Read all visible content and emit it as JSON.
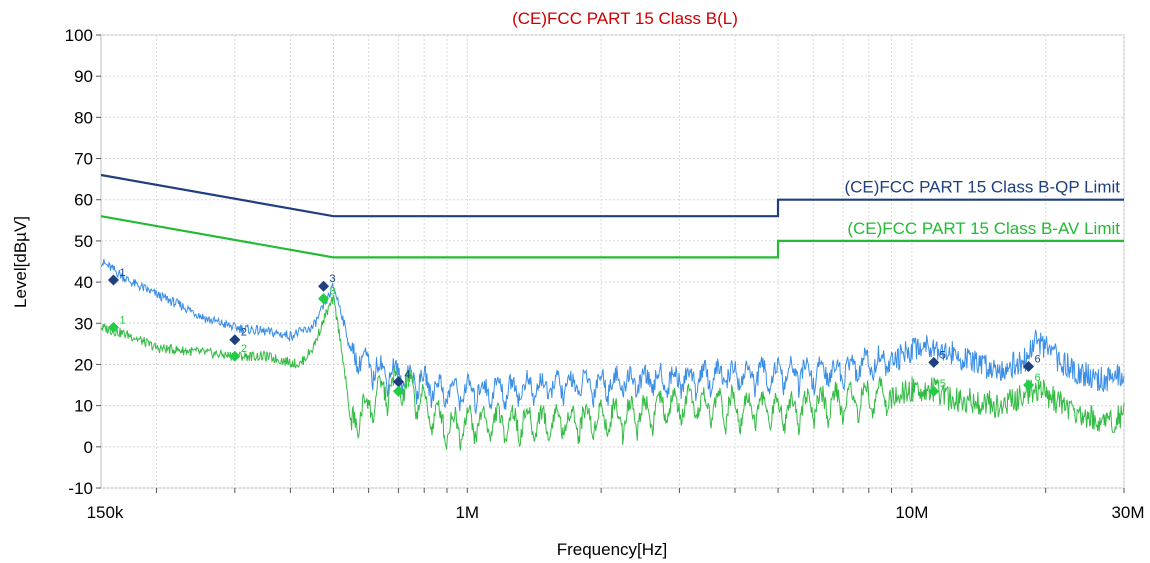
{
  "chart_data": {
    "type": "line",
    "title": "(CE)FCC PART 15 Class B(L)",
    "xlabel": "Frequency[Hz]",
    "ylabel": "Level[dBµV]",
    "x_scale": "log",
    "xlim": [
      150000,
      30000000
    ],
    "ylim": [
      -10,
      100
    ],
    "grid": true,
    "x_tick_labels": [
      {
        "value": 150000,
        "label": "150k"
      },
      {
        "value": 1000000,
        "label": "1M"
      },
      {
        "value": 10000000,
        "label": "10M"
      },
      {
        "value": 30000000,
        "label": "30M"
      }
    ],
    "y_ticks": [
      -10,
      0,
      10,
      20,
      30,
      40,
      50,
      60,
      70,
      80,
      90,
      100
    ],
    "series": [
      {
        "name": "(CE)FCC PART 15 Class B-QP Limit",
        "color": "#1f3f7f",
        "style": "limit",
        "points": [
          [
            150000,
            66
          ],
          [
            500000,
            56
          ],
          [
            5000000,
            56
          ],
          [
            5000000,
            60
          ],
          [
            30000000,
            60
          ]
        ]
      },
      {
        "name": "(CE)FCC PART 15 Class B-AV Limit",
        "color": "#22bb33",
        "style": "limit",
        "points": [
          [
            150000,
            56
          ],
          [
            500000,
            46
          ],
          [
            5000000,
            46
          ],
          [
            5000000,
            50
          ],
          [
            30000000,
            50
          ]
        ]
      },
      {
        "color": "#3a8ee6",
        "style": "trace",
        "points": [
          [
            150000,
            45
          ],
          [
            160000,
            43
          ],
          [
            175000,
            40
          ],
          [
            200000,
            37
          ],
          [
            230000,
            34
          ],
          [
            260000,
            31
          ],
          [
            300000,
            29
          ],
          [
            350000,
            28
          ],
          [
            400000,
            27
          ],
          [
            450000,
            29
          ],
          [
            480000,
            35
          ],
          [
            500000,
            39
          ],
          [
            520000,
            33
          ],
          [
            550000,
            22
          ],
          [
            600000,
            18
          ],
          [
            650000,
            17
          ],
          [
            700000,
            16
          ],
          [
            750000,
            15
          ],
          [
            800000,
            14
          ],
          [
            900000,
            12
          ],
          [
            1000000,
            12
          ],
          [
            1500000,
            13
          ],
          [
            2000000,
            14
          ],
          [
            3000000,
            15
          ],
          [
            4000000,
            16
          ],
          [
            5000000,
            16
          ],
          [
            7000000,
            17
          ],
          [
            9000000,
            20
          ],
          [
            10000000,
            24
          ],
          [
            11000000,
            25
          ],
          [
            12000000,
            23
          ],
          [
            14000000,
            20
          ],
          [
            16000000,
            19
          ],
          [
            18000000,
            21
          ],
          [
            19000000,
            26
          ],
          [
            20000000,
            24
          ],
          [
            22000000,
            20
          ],
          [
            25000000,
            17
          ],
          [
            28000000,
            16
          ],
          [
            30000000,
            18
          ]
        ]
      },
      {
        "color": "#33bb44",
        "style": "trace",
        "points": [
          [
            150000,
            29
          ],
          [
            175000,
            27
          ],
          [
            200000,
            24
          ],
          [
            250000,
            23
          ],
          [
            300000,
            22
          ],
          [
            350000,
            22
          ],
          [
            420000,
            20
          ],
          [
            450000,
            24
          ],
          [
            480000,
            32
          ],
          [
            500000,
            36
          ],
          [
            520000,
            25
          ],
          [
            550000,
            4
          ],
          [
            600000,
            8
          ],
          [
            650000,
            12
          ],
          [
            700000,
            13
          ],
          [
            750000,
            12
          ],
          [
            800000,
            8
          ],
          [
            900000,
            3
          ],
          [
            1000000,
            4
          ],
          [
            1500000,
            4
          ],
          [
            2000000,
            5
          ],
          [
            3000000,
            8
          ],
          [
            4000000,
            8
          ],
          [
            5000000,
            7
          ],
          [
            7000000,
            9
          ],
          [
            9000000,
            11
          ],
          [
            10000000,
            14
          ],
          [
            11000000,
            14
          ],
          [
            12000000,
            12
          ],
          [
            14000000,
            11
          ],
          [
            16000000,
            10
          ],
          [
            18000000,
            13
          ],
          [
            19000000,
            14
          ],
          [
            20000000,
            13
          ],
          [
            22000000,
            10
          ],
          [
            25000000,
            7
          ],
          [
            28000000,
            6
          ],
          [
            30000000,
            8
          ]
        ]
      }
    ],
    "markers": [
      {
        "label": "1",
        "series": "QP",
        "x": 160000,
        "y": 40.5,
        "color": "#1f3f7f"
      },
      {
        "label": "2",
        "series": "QP",
        "x": 300000,
        "y": 26,
        "color": "#1f3f7f"
      },
      {
        "label": "3",
        "series": "QP",
        "x": 475000,
        "y": 39,
        "color": "#1f3f7f"
      },
      {
        "label": "4",
        "series": "QP",
        "x": 700000,
        "y": 15.8,
        "color": "#1f3f7f"
      },
      {
        "label": "5",
        "series": "QP",
        "x": 11200000,
        "y": 20.5,
        "color": "#1f3f7f"
      },
      {
        "label": "6",
        "series": "QP",
        "x": 18300000,
        "y": 19.5,
        "color": "#1f3f7f"
      },
      {
        "label": "1",
        "series": "AV",
        "x": 160000,
        "y": 29,
        "color": "#22cc44"
      },
      {
        "label": "2",
        "series": "AV",
        "x": 300000,
        "y": 22,
        "color": "#22cc44"
      },
      {
        "label": "3",
        "series": "AV",
        "x": 475000,
        "y": 36,
        "color": "#22cc44"
      },
      {
        "label": "4",
        "series": "AV",
        "x": 700000,
        "y": 13.5,
        "color": "#22cc44"
      },
      {
        "label": "5",
        "series": "AV",
        "x": 11200000,
        "y": 13.5,
        "color": "#22cc44"
      },
      {
        "label": "6",
        "series": "AV",
        "x": 18300000,
        "y": 15,
        "color": "#22cc44"
      }
    ]
  }
}
